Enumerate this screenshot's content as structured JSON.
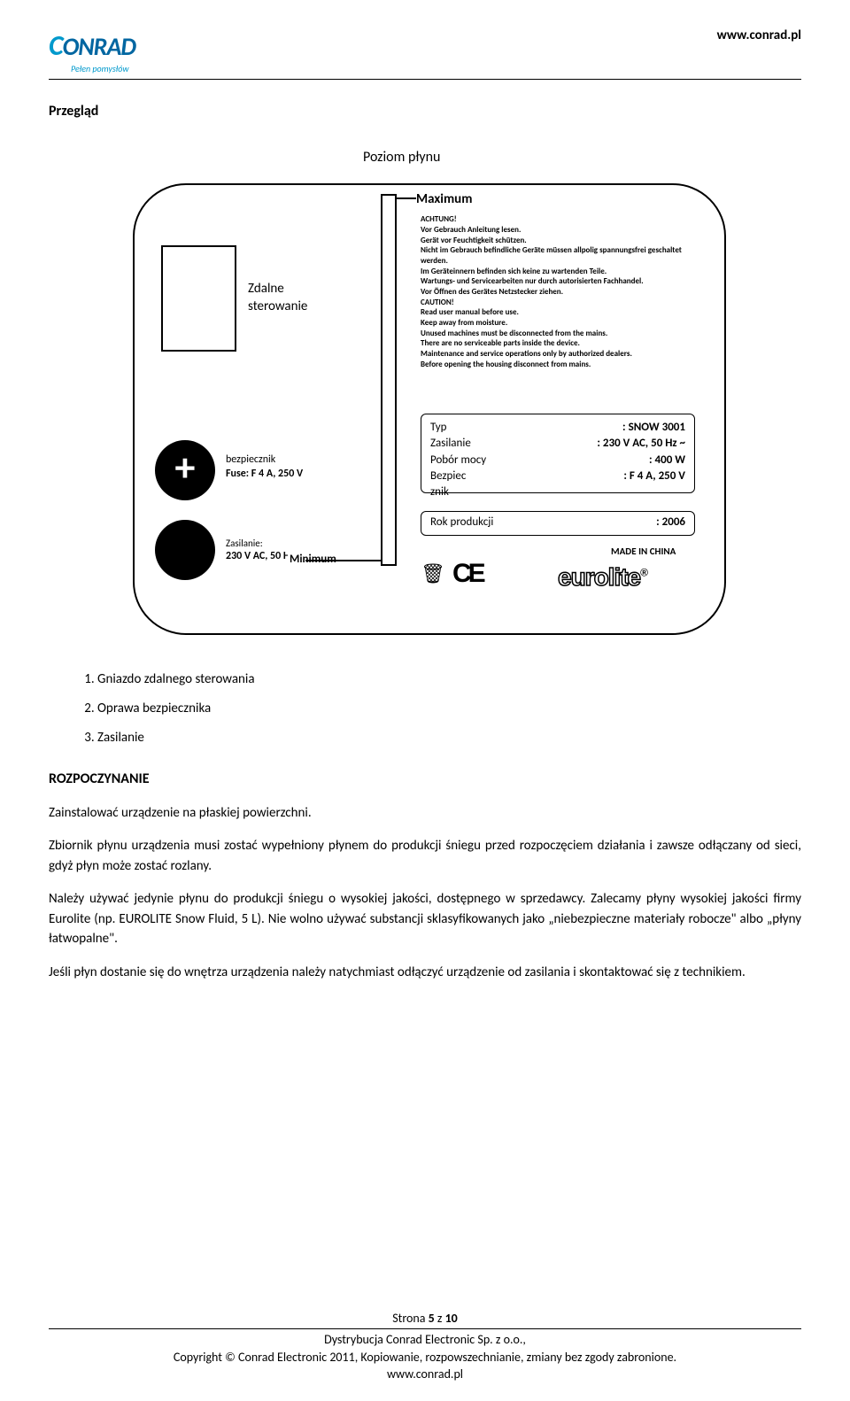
{
  "header": {
    "logo_main": "ONRAD",
    "logo_c": "C",
    "logo_sub": "Pełen pomysłów",
    "url": "www.conrad.pl"
  },
  "section_title": "Przegląd",
  "diagram": {
    "top_label": "Poziom płynu",
    "max_label": "Maximum",
    "min_label": "Minimum",
    "remote_label_1": "Zdalne",
    "remote_label_2": "sterowanie",
    "fuse_label_1": "bezpiecznik",
    "fuse_label_2": "Fuse: F 4 A, 250 V",
    "power_label_1": "Zasilanie:",
    "power_label_2": "230 V AC, 50 Hz",
    "warning_text": "ACHTUNG!\nVor Gebrauch Anleitung lesen.\nGerät vor Feuchtigkeit schützen.\nNicht im Gebrauch befindliche Geräte müssen allpolig spannungsfrei geschaltet werden.\nIm Geräteinnern befinden sich keine zu wartenden Teile.\nWartungs- und Servicearbeiten nur durch autorisierten Fachhandel.\nVor Öffnen des Gerätes Netzstecker ziehen.\nCAUTION!\nRead user manual before use.\nKeep away from moisture.\nUnused machines must be disconnected from the mains.\nThere are no serviceable parts inside the device.\nMaintenance and service operations only by authorized dealers.\nBefore opening the housing disconnect from mains.",
    "spec": {
      "typ_lbl": "Typ",
      "typ_val": ": SNOW 3001",
      "zas_lbl": "Zasilanie",
      "zas_val": ": 230 V AC, 50 Hz ~",
      "pob_lbl": "Pobór mocy",
      "pob_val": ": 400 W",
      "bez_lbl": "Bezpiec",
      "bez_lbl2": "znik",
      "bez_val": ": F 4 A, 250 V"
    },
    "year_lbl": "Rok produkcji",
    "year_val": ": 2006",
    "made_in": "MADE IN CHINA",
    "brand": "eurolite",
    "brand_r": "®"
  },
  "list": {
    "i1": "Gniazdo zdalnego sterowania",
    "i2": "Oprawa bezpiecznika",
    "i3": "Zasilanie"
  },
  "heading2": "ROZPOCZYNANIE",
  "p1": "Zainstalować urządzenie na płaskiej powierzchni.",
  "p2": "Zbiornik płynu urządzenia musi zostać wypełniony płynem do produkcji śniegu przed rozpoczęciem działania i zawsze odłączany od sieci, gdyż płyn może zostać rozlany.",
  "p3": "Należy używać jedynie płynu do produkcji śniegu o wysokiej jakości, dostępnego w sprzedawcy. Zalecamy płyny wysokiej jakości firmy Eurolite (np. EUROLITE Snow Fluid, 5 L). Nie wolno używać substancji sklasyfikowanych jako „niebezpieczne materiały robocze\" albo „płyny łatwopalne\".",
  "p4": "Jeśli płyn dostanie się do wnętrza urządzenia należy natychmiast odłączyć urządzenie od zasilania i skontaktować się z technikiem.",
  "footer": {
    "page": "Strona 5 z 10",
    "dist": "Dystrybucja Conrad Electronic Sp. z o.o.,",
    "copy": "Copyright © Conrad Electronic 2011, Kopiowanie, rozpowszechnianie, zmiany bez zgody zabronione.",
    "url": "www.conrad.pl"
  }
}
